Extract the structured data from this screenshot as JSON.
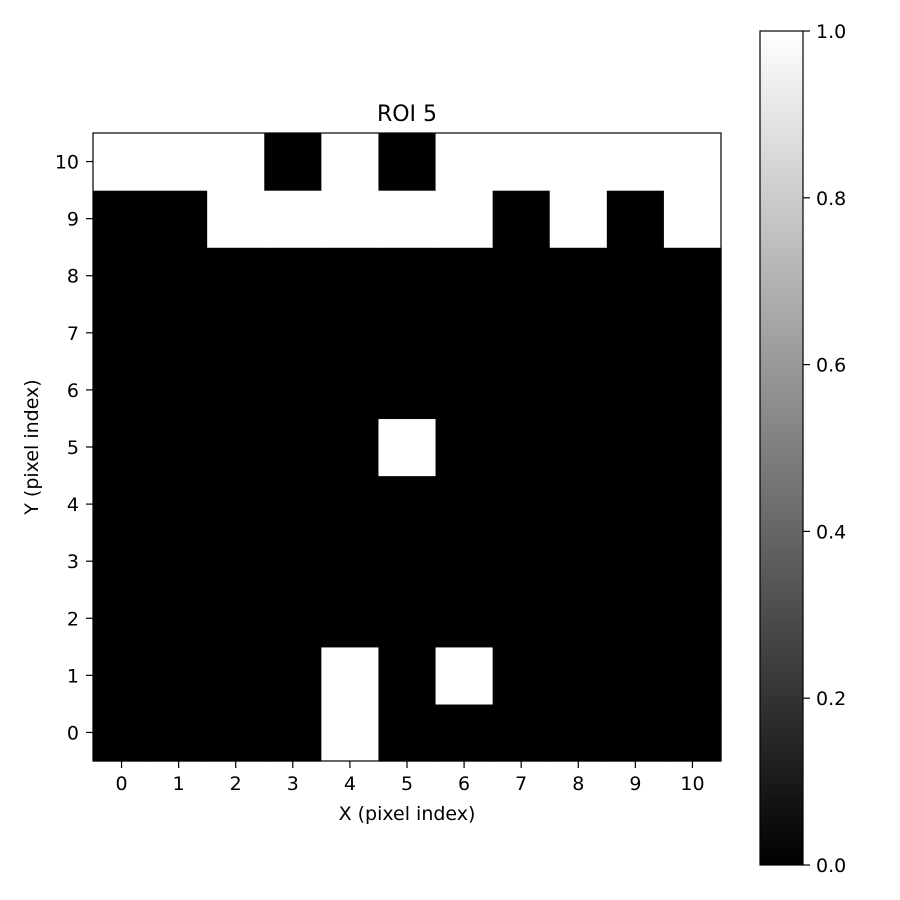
{
  "chart_data": {
    "type": "heatmap",
    "title": "ROI 5",
    "xlabel": "X (pixel index)",
    "ylabel": "Y (pixel index)",
    "x": [
      0,
      1,
      2,
      3,
      4,
      5,
      6,
      7,
      8,
      9,
      10
    ],
    "y": [
      0,
      1,
      2,
      3,
      4,
      5,
      6,
      7,
      8,
      9,
      10
    ],
    "xlim": [
      -0.5,
      10.5
    ],
    "ylim": [
      -0.5,
      10.5
    ],
    "x_tick_labels": [
      "0",
      "1",
      "2",
      "3",
      "4",
      "5",
      "6",
      "7",
      "8",
      "9",
      "10"
    ],
    "y_tick_labels": [
      "0",
      "1",
      "2",
      "3",
      "4",
      "5",
      "6",
      "7",
      "8",
      "9",
      "10"
    ],
    "colormap": "gray",
    "grid": false,
    "values": [
      [
        0,
        0,
        0,
        0,
        1,
        0,
        0,
        0,
        0,
        0,
        0
      ],
      [
        0,
        0,
        0,
        0,
        1,
        0,
        1,
        0,
        0,
        0,
        0
      ],
      [
        0,
        0,
        0,
        0,
        0,
        0,
        0,
        0,
        0,
        0,
        0
      ],
      [
        0,
        0,
        0,
        0,
        0,
        0,
        0,
        0,
        0,
        0,
        0
      ],
      [
        0,
        0,
        0,
        0,
        0,
        0,
        0,
        0,
        0,
        0,
        0
      ],
      [
        0,
        0,
        0,
        0,
        0,
        1,
        0,
        0,
        0,
        0,
        0
      ],
      [
        0,
        0,
        0,
        0,
        0,
        0,
        0,
        0,
        0,
        0,
        0
      ],
      [
        0,
        0,
        0,
        0,
        0,
        0,
        0,
        0,
        0,
        0,
        0
      ],
      [
        0,
        0,
        0,
        0,
        0,
        0,
        0,
        0,
        0,
        0,
        0
      ],
      [
        0,
        0,
        1,
        1,
        1,
        1,
        1,
        0,
        1,
        0,
        1
      ],
      [
        1,
        1,
        1,
        0,
        1,
        0,
        1,
        1,
        1,
        1,
        1
      ]
    ],
    "colorbar": {
      "range": [
        0.0,
        1.0
      ],
      "tick_values": [
        0.0,
        0.2,
        0.4,
        0.6,
        0.8,
        1.0
      ],
      "tick_labels": [
        "0.0",
        "0.2",
        "0.4",
        "0.6",
        "0.8",
        "1.0"
      ]
    }
  }
}
